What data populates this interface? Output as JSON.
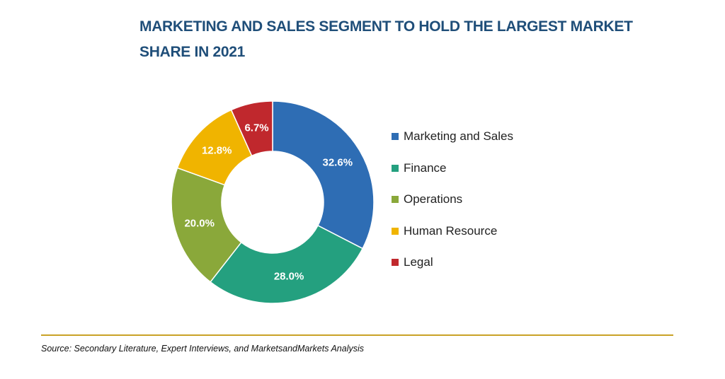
{
  "chart_data": {
    "type": "pie",
    "style": "donut",
    "title": "MARKETING AND SALES SEGMENT TO HOLD THE LARGEST MARKET SHARE IN 2021",
    "categories": [
      "Marketing and Sales",
      "Finance",
      "Operations",
      "Human Resource",
      "Legal"
    ],
    "values": [
      32.6,
      28.0,
      20.0,
      12.8,
      6.7
    ],
    "value_labels": [
      "32.6%",
      "28.0%",
      "20.0%",
      "12.8%",
      "6.7%"
    ],
    "colors": [
      "#2e6db4",
      "#24a07f",
      "#8aa83a",
      "#f0b400",
      "#c0282d"
    ],
    "legend_position": "right",
    "legend": [
      {
        "label": "Marketing and Sales",
        "color": "#2e6db4"
      },
      {
        "label": "Finance",
        "color": "#24a07f"
      },
      {
        "label": "Operations",
        "color": "#8aa83a"
      },
      {
        "label": "Human Resource",
        "color": "#f0b400"
      },
      {
        "label": "Legal",
        "color": "#c0282d"
      }
    ]
  },
  "source": "Source: Secondary Literature, Expert Interviews, and MarketsandMarkets Analysis",
  "colors": {
    "title": "#1f4e79",
    "divider": "#c9a227"
  }
}
